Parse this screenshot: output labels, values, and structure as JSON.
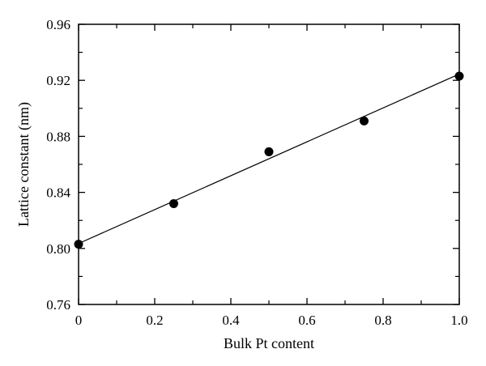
{
  "chart_data": {
    "type": "scatter",
    "title": "",
    "xlabel": "Bulk Pt content",
    "ylabel": "Lattice constant (nm)",
    "xlim": [
      0,
      1.0
    ],
    "ylim": [
      0.76,
      0.96
    ],
    "x_ticks": [
      "0",
      "0.2",
      "0.4",
      "0.6",
      "0.8",
      "1.0"
    ],
    "x_tick_values": [
      0,
      0.2,
      0.4,
      0.6,
      0.8,
      1.0
    ],
    "y_ticks": [
      "0.76",
      "0.80",
      "0.84",
      "0.88",
      "0.92",
      "0.96"
    ],
    "y_tick_values": [
      0.76,
      0.8,
      0.84,
      0.88,
      0.92,
      0.96
    ],
    "grid": false,
    "series": [
      {
        "x": [
          0,
          0.25,
          0.5,
          0.75,
          1.0
        ],
        "y": [
          0.803,
          0.832,
          0.869,
          0.891,
          0.923
        ],
        "marker": "circle",
        "color": "#000000"
      }
    ],
    "fit_line": {
      "x": [
        0,
        1.0
      ],
      "y": [
        0.8035,
        0.9245
      ],
      "color": "#000000"
    }
  }
}
